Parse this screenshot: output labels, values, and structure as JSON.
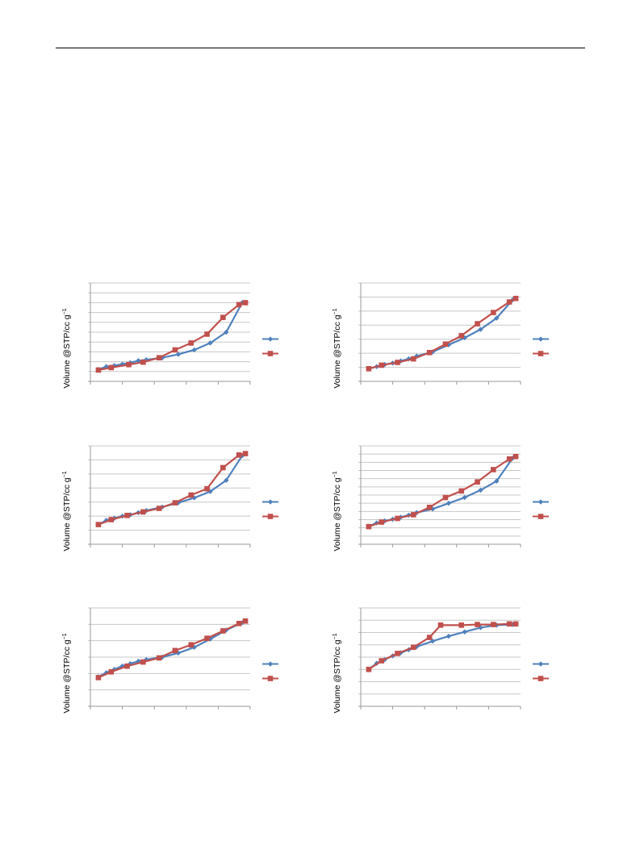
{
  "page": {
    "has_header_rule": true
  },
  "colors": {
    "series_blue": "#4f81bd",
    "series_red": "#c0504d",
    "grid": "#c8c8c8",
    "axis": "#9a9a9a"
  },
  "chart_data": [
    {
      "type": "line",
      "ylabel": "Volume @STP/cc g",
      "ylabel_sup": "−1",
      "xlim": [
        0,
        1
      ],
      "ylim": [
        0,
        10
      ],
      "grid": true,
      "legend": "right",
      "series": [
        {
          "color": "#4f81bd",
          "marker": "diamond",
          "x": [
            0.05,
            0.1,
            0.15,
            0.2,
            0.25,
            0.3,
            0.35,
            0.45,
            0.55,
            0.65,
            0.75,
            0.85,
            0.95
          ],
          "y": [
            1.2,
            1.5,
            1.6,
            1.75,
            1.9,
            2.1,
            2.2,
            2.4,
            2.75,
            3.2,
            3.9,
            5.0,
            8.0
          ]
        },
        {
          "color": "#c0504d",
          "marker": "square",
          "x": [
            0.05,
            0.13,
            0.24,
            0.33,
            0.43,
            0.53,
            0.63,
            0.73,
            0.83,
            0.93,
            0.97
          ],
          "y": [
            1.15,
            1.4,
            1.7,
            1.95,
            2.4,
            3.2,
            3.9,
            4.8,
            6.5,
            7.8,
            8.0
          ]
        }
      ]
    },
    {
      "type": "line",
      "ylabel": "Volume @STP/cc g",
      "ylabel_sup": "−1",
      "xlim": [
        0,
        1
      ],
      "ylim": [
        0,
        7
      ],
      "grid": true,
      "legend": "right",
      "series": [
        {
          "color": "#4f81bd",
          "marker": "diamond",
          "x": [
            0.05,
            0.1,
            0.15,
            0.2,
            0.25,
            0.3,
            0.35,
            0.45,
            0.55,
            0.65,
            0.75,
            0.85,
            0.95
          ],
          "y": [
            0.9,
            1.05,
            1.2,
            1.3,
            1.45,
            1.6,
            1.8,
            2.1,
            2.6,
            3.1,
            3.7,
            4.5,
            5.8
          ]
        },
        {
          "color": "#c0504d",
          "marker": "square",
          "x": [
            0.05,
            0.13,
            0.23,
            0.33,
            0.43,
            0.53,
            0.63,
            0.73,
            0.83,
            0.93,
            0.97
          ],
          "y": [
            0.9,
            1.15,
            1.35,
            1.6,
            2.05,
            2.65,
            3.25,
            4.1,
            4.9,
            5.65,
            5.9
          ]
        }
      ]
    },
    {
      "type": "line",
      "ylabel": "Volume @STP/cc g",
      "ylabel_sup": "−1",
      "xlim": [
        0,
        1
      ],
      "ylim": [
        0,
        7
      ],
      "grid": true,
      "legend": "right",
      "series": [
        {
          "color": "#4f81bd",
          "marker": "diamond",
          "x": [
            0.05,
            0.1,
            0.15,
            0.2,
            0.25,
            0.3,
            0.35,
            0.45,
            0.55,
            0.65,
            0.75,
            0.85,
            0.95
          ],
          "y": [
            1.4,
            1.7,
            1.85,
            2.0,
            2.1,
            2.25,
            2.4,
            2.65,
            2.95,
            3.3,
            3.75,
            4.55,
            6.3
          ]
        },
        {
          "color": "#c0504d",
          "marker": "square",
          "x": [
            0.05,
            0.13,
            0.23,
            0.33,
            0.43,
            0.53,
            0.63,
            0.73,
            0.83,
            0.93,
            0.97
          ],
          "y": [
            1.4,
            1.75,
            2.05,
            2.3,
            2.55,
            2.95,
            3.5,
            3.95,
            5.45,
            6.35,
            6.45
          ]
        }
      ]
    },
    {
      "type": "line",
      "ylabel": "Volume @STP/cc g",
      "ylabel_sup": "−1",
      "xlim": [
        0,
        1
      ],
      "ylim": [
        0,
        12
      ],
      "grid": true,
      "legend": "right",
      "series": [
        {
          "color": "#4f81bd",
          "marker": "diamond",
          "x": [
            0.05,
            0.1,
            0.15,
            0.2,
            0.25,
            0.3,
            0.35,
            0.45,
            0.55,
            0.65,
            0.75,
            0.85,
            0.95
          ],
          "y": [
            2.2,
            2.6,
            2.85,
            3.05,
            3.3,
            3.55,
            3.85,
            4.3,
            5.0,
            5.7,
            6.6,
            7.7,
            10.5
          ]
        },
        {
          "color": "#c0504d",
          "marker": "square",
          "x": [
            0.05,
            0.13,
            0.23,
            0.33,
            0.43,
            0.53,
            0.63,
            0.73,
            0.83,
            0.93,
            0.97
          ],
          "y": [
            2.15,
            2.7,
            3.15,
            3.6,
            4.5,
            5.7,
            6.5,
            7.6,
            9.1,
            10.4,
            10.7
          ]
        }
      ]
    },
    {
      "type": "line",
      "ylabel": "Volume @STP/cc g",
      "ylabel_sup": "−1",
      "xlim": [
        0,
        1
      ],
      "ylim": [
        0,
        6
      ],
      "grid": true,
      "legend": "right",
      "series": [
        {
          "color": "#4f81bd",
          "marker": "diamond",
          "x": [
            0.05,
            0.1,
            0.15,
            0.2,
            0.25,
            0.3,
            0.35,
            0.45,
            0.55,
            0.65,
            0.75,
            0.85,
            0.95
          ],
          "y": [
            1.8,
            2.05,
            2.25,
            2.45,
            2.6,
            2.75,
            2.85,
            3.0,
            3.25,
            3.6,
            4.1,
            4.65,
            5.1
          ]
        },
        {
          "color": "#c0504d",
          "marker": "square",
          "x": [
            0.05,
            0.13,
            0.23,
            0.33,
            0.43,
            0.53,
            0.63,
            0.73,
            0.83,
            0.93,
            0.97
          ],
          "y": [
            1.75,
            2.1,
            2.45,
            2.7,
            2.95,
            3.4,
            3.75,
            4.15,
            4.6,
            5.05,
            5.2
          ]
        }
      ]
    },
    {
      "type": "line",
      "ylabel": "Volume @STP/cc g",
      "ylabel_sup": "−1",
      "xlim": [
        0,
        1
      ],
      "ylim": [
        0,
        8
      ],
      "grid": true,
      "legend": "right",
      "series": [
        {
          "color": "#4f81bd",
          "marker": "diamond",
          "x": [
            0.05,
            0.1,
            0.15,
            0.2,
            0.25,
            0.3,
            0.35,
            0.45,
            0.55,
            0.65,
            0.75,
            0.85,
            0.95
          ],
          "y": [
            3.0,
            3.5,
            3.8,
            4.1,
            4.35,
            4.6,
            4.85,
            5.3,
            5.7,
            6.05,
            6.4,
            6.6,
            6.65
          ]
        },
        {
          "color": "#c0504d",
          "marker": "square",
          "x": [
            0.05,
            0.13,
            0.23,
            0.33,
            0.43,
            0.5,
            0.63,
            0.73,
            0.83,
            0.93,
            0.97
          ],
          "y": [
            3.0,
            3.7,
            4.3,
            4.8,
            5.6,
            6.6,
            6.6,
            6.65,
            6.65,
            6.7,
            6.7
          ]
        }
      ]
    }
  ]
}
